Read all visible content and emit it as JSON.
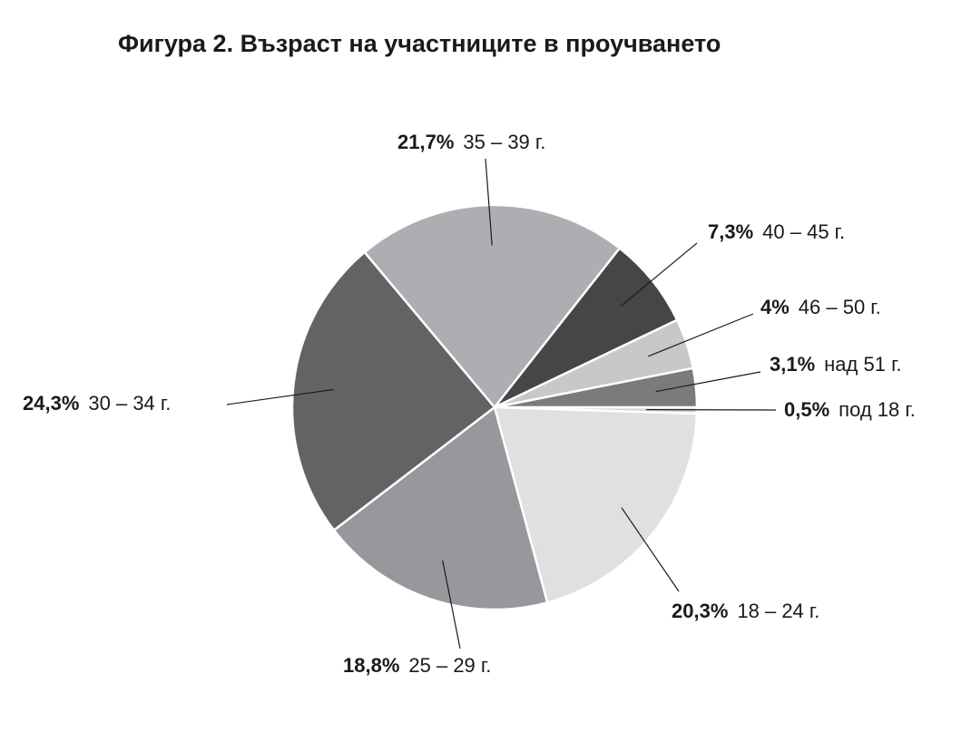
{
  "chart_data": {
    "type": "pie",
    "title": "Фигура 2. Възраст на участниците в проучването",
    "categories": [
      "под 18 г.",
      "18 – 24 г.",
      "25 – 29 г.",
      "30 – 34 г.",
      "35 – 39 г.",
      "40 – 45 г.",
      "46 – 50 г.",
      "над 51 г."
    ],
    "values": [
      0.5,
      20.3,
      18.8,
      24.3,
      21.7,
      7.3,
      4,
      3.1
    ],
    "value_labels": [
      "0,5%",
      "20,3%",
      "18,8%",
      "24,3%",
      "21,7%",
      "7,3%",
      "4%",
      "3,1%"
    ],
    "colors": [
      "#d4d4d6",
      "#e0e0e2",
      "#97989b",
      "#636365",
      "#adaeb1",
      "#464648",
      "#c8c8ca",
      "#7b7b7d"
    ]
  }
}
